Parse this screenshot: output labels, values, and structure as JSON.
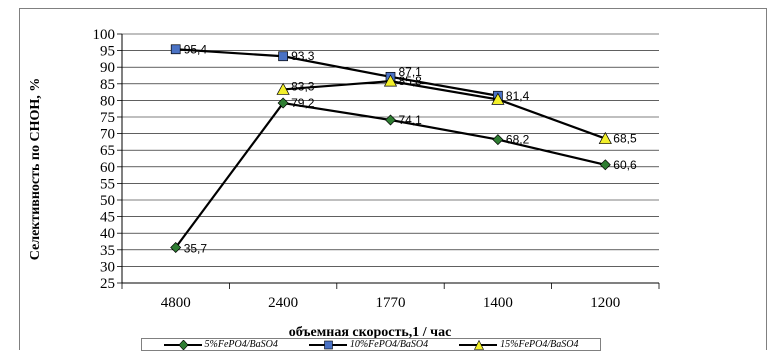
{
  "chart_data": {
    "type": "line",
    "title": "",
    "xlabel": "объемная скорость,1 / час",
    "ylabel": "Селективность по СНОН, %",
    "categories": [
      "4800",
      "2400",
      "1770",
      "1400",
      "1200"
    ],
    "ylim": [
      25,
      100
    ],
    "yticks": [
      25,
      30,
      35,
      40,
      45,
      50,
      55,
      60,
      65,
      70,
      75,
      80,
      85,
      90,
      95,
      100
    ],
    "grid": "horizontal",
    "legend_position": "bottom",
    "series": [
      {
        "name": "5%FePO4/BaSO4",
        "marker": "diamond",
        "color": "#2e7d32",
        "values": [
          35.7,
          79.2,
          74.1,
          68.2,
          60.6
        ],
        "labels": [
          "35,7",
          "79,2",
          "74,1",
          "68,2",
          "60,6"
        ]
      },
      {
        "name": "10%FePO4/BaSO4",
        "marker": "square",
        "color": "#4a72c4",
        "values": [
          95.4,
          93.3,
          87.1,
          81.4,
          null
        ],
        "labels": [
          "95,4",
          "93,3",
          "87,1",
          "81,4",
          ""
        ]
      },
      {
        "name": "15%FePO4/BaSO4",
        "marker": "triangle",
        "color": "#f2ef2a",
        "values": [
          null,
          83.3,
          85.8,
          80.3,
          68.5
        ],
        "labels": [
          "",
          "83,3",
          "85,8",
          "",
          "68,5"
        ]
      }
    ]
  }
}
